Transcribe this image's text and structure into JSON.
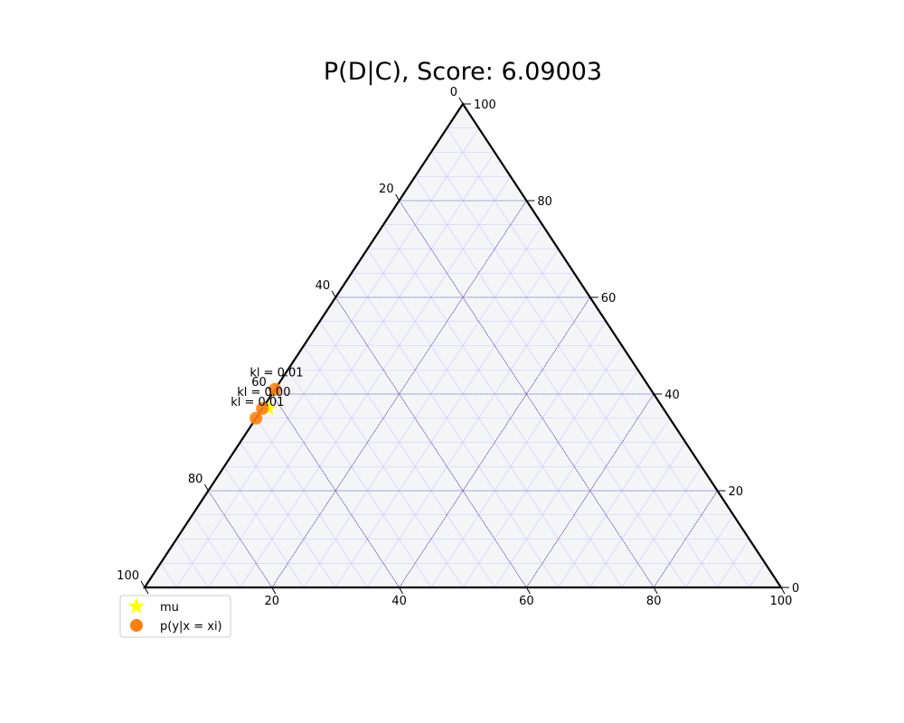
{
  "chart_data": {
    "type": "scatter",
    "subtype": "ternary",
    "title": "P(D|C), Score: 6.09003",
    "scale": 100,
    "ticks": [
      "0",
      "20",
      "40",
      "60",
      "80",
      "100"
    ],
    "grid": true,
    "minor_grid_step": 5,
    "major_grid_step": 20,
    "legend_position": "lower-left",
    "series": [
      {
        "name": "mu",
        "marker": "star",
        "color": "#ffff00",
        "points": [
          {
            "a": 62,
            "b": 37,
            "c": 1
          }
        ]
      },
      {
        "name": "p(y|x = xi)",
        "marker": "circle",
        "color": "#ff7f0e",
        "points": [
          {
            "a": 65,
            "b": 35,
            "c": 0,
            "label": "kl = 0.01"
          },
          {
            "a": 63,
            "b": 37,
            "c": 0,
            "label": "kl = 0.00"
          },
          {
            "a": 59,
            "b": 41,
            "c": 0,
            "label": "kl = 0.01"
          }
        ]
      }
    ]
  },
  "colors": {
    "background": "#f5f5f7",
    "minor_grid": "#c8c8ff",
    "major_grid": "#000080",
    "boundary": "#000000"
  }
}
